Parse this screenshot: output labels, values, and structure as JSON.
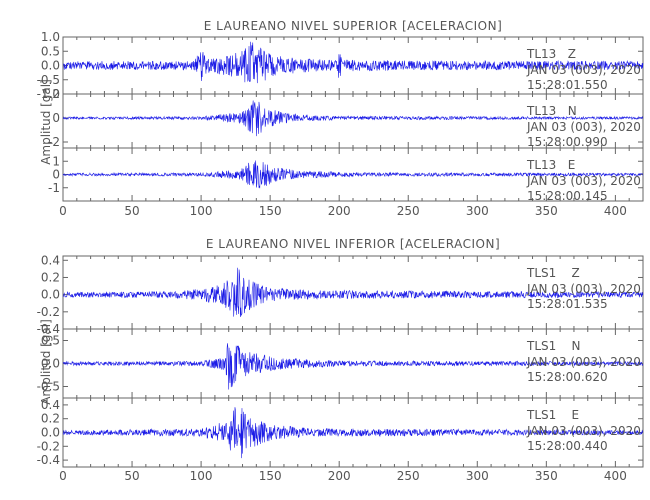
{
  "colors": {
    "trace": "#1a1ae6",
    "axis": "#666666",
    "text": "#555555",
    "background": "#ffffff"
  },
  "chart_data": [
    {
      "type": "line",
      "title": "E LAUREANO NIVEL SUPERIOR [ACELERACION]",
      "ylabel": "Amplitud [gal]",
      "xlim": [
        0,
        420
      ],
      "xticks": [
        "0",
        "50",
        "100",
        "150",
        "200",
        "250",
        "300",
        "350",
        "400"
      ],
      "panels": [
        {
          "name": "TL13 Z",
          "station_label": "TL13   Z",
          "date_label": "JAN 03 (003), 2020",
          "time_label": "15:28:01.550",
          "ylim": [
            -1.0,
            1.0
          ],
          "yticks": [
            "1.0",
            "0.5",
            "0.0",
            "-0.5",
            "-1.0"
          ],
          "envelope": [
            [
              0,
              0.15
            ],
            [
              95,
              0.16
            ],
            [
              100,
              0.6
            ],
            [
              104,
              0.25
            ],
            [
              118,
              0.35
            ],
            [
              130,
              0.55
            ],
            [
              137,
              0.9
            ],
            [
              140,
              0.75
            ],
            [
              150,
              0.4
            ],
            [
              170,
              0.25
            ],
            [
              198,
              0.2
            ],
            [
              200,
              0.55
            ],
            [
              203,
              0.2
            ],
            [
              260,
              0.17
            ],
            [
              420,
              0.15
            ]
          ]
        },
        {
          "name": "TL13 N",
          "station_label": "TL13   N",
          "date_label": "JAN 03 (003), 2020",
          "time_label": "15:28:00.990",
          "ylim": [
            -2.5,
            2.0
          ],
          "yticks": [
            "2",
            "0",
            "-2"
          ],
          "envelope": [
            [
              0,
              0.1
            ],
            [
              100,
              0.12
            ],
            [
              128,
              0.5
            ],
            [
              135,
              1.4
            ],
            [
              140,
              1.6
            ],
            [
              148,
              0.8
            ],
            [
              165,
              0.35
            ],
            [
              200,
              0.15
            ],
            [
              420,
              0.1
            ]
          ]
        },
        {
          "name": "TL13 E",
          "station_label": "TL13   E",
          "date_label": "JAN 03 (003), 2020",
          "time_label": "15:28:00.145",
          "ylim": [
            -2.0,
            2.0
          ],
          "yticks": [
            "1",
            "0",
            "-1"
          ],
          "envelope": [
            [
              0,
              0.1
            ],
            [
              100,
              0.12
            ],
            [
              128,
              0.4
            ],
            [
              136,
              1.0
            ],
            [
              142,
              1.2
            ],
            [
              150,
              0.7
            ],
            [
              170,
              0.3
            ],
            [
              210,
              0.15
            ],
            [
              420,
              0.1
            ]
          ]
        }
      ]
    },
    {
      "type": "line",
      "title": "E LAUREANO NIVEL INFERIOR [ACELERACION]",
      "ylabel": "Amplitud [gal]",
      "xlim": [
        0,
        420
      ],
      "xticks": [
        "0",
        "50",
        "100",
        "150",
        "200",
        "250",
        "300",
        "350",
        "400"
      ],
      "panels": [
        {
          "name": "TLS1 Z",
          "station_label": "TLS1    Z",
          "date_label": "JAN 03 (003), 2020",
          "time_label": "15:28:01.535",
          "ylim": [
            -0.4,
            0.45
          ],
          "yticks": [
            "0.4",
            "0.2",
            "0.0",
            "-0.2",
            "-0.4"
          ],
          "envelope": [
            [
              0,
              0.03
            ],
            [
              80,
              0.04
            ],
            [
              100,
              0.07
            ],
            [
              115,
              0.12
            ],
            [
              122,
              0.25
            ],
            [
              127,
              0.35
            ],
            [
              132,
              0.2
            ],
            [
              150,
              0.08
            ],
            [
              180,
              0.05
            ],
            [
              420,
              0.03
            ]
          ]
        },
        {
          "name": "TLS1 N",
          "station_label": "TLS1    N",
          "date_label": "JAN 03 (003), 2020",
          "time_label": "15:28:00.620",
          "ylim": [
            -0.75,
            0.75
          ],
          "yticks": [
            "0.5",
            "0.0",
            "-0.5"
          ],
          "envelope": [
            [
              0,
              0.04
            ],
            [
              100,
              0.05
            ],
            [
              117,
              0.15
            ],
            [
              120,
              0.6
            ],
            [
              124,
              0.45
            ],
            [
              135,
              0.25
            ],
            [
              160,
              0.12
            ],
            [
              200,
              0.06
            ],
            [
              420,
              0.04
            ]
          ]
        },
        {
          "name": "TLS1 E",
          "station_label": "TLS1    E",
          "date_label": "JAN 03 (003), 2020",
          "time_label": "15:28:00.440",
          "ylim": [
            -0.5,
            0.5
          ],
          "yticks": [
            "0.4",
            "0.2",
            "0.0",
            "-0.2",
            "-0.4"
          ],
          "envelope": [
            [
              0,
              0.03
            ],
            [
              100,
              0.06
            ],
            [
              115,
              0.15
            ],
            [
              122,
              0.3
            ],
            [
              127,
              0.45
            ],
            [
              133,
              0.25
            ],
            [
              150,
              0.12
            ],
            [
              180,
              0.06
            ],
            [
              420,
              0.03
            ]
          ]
        }
      ]
    }
  ]
}
